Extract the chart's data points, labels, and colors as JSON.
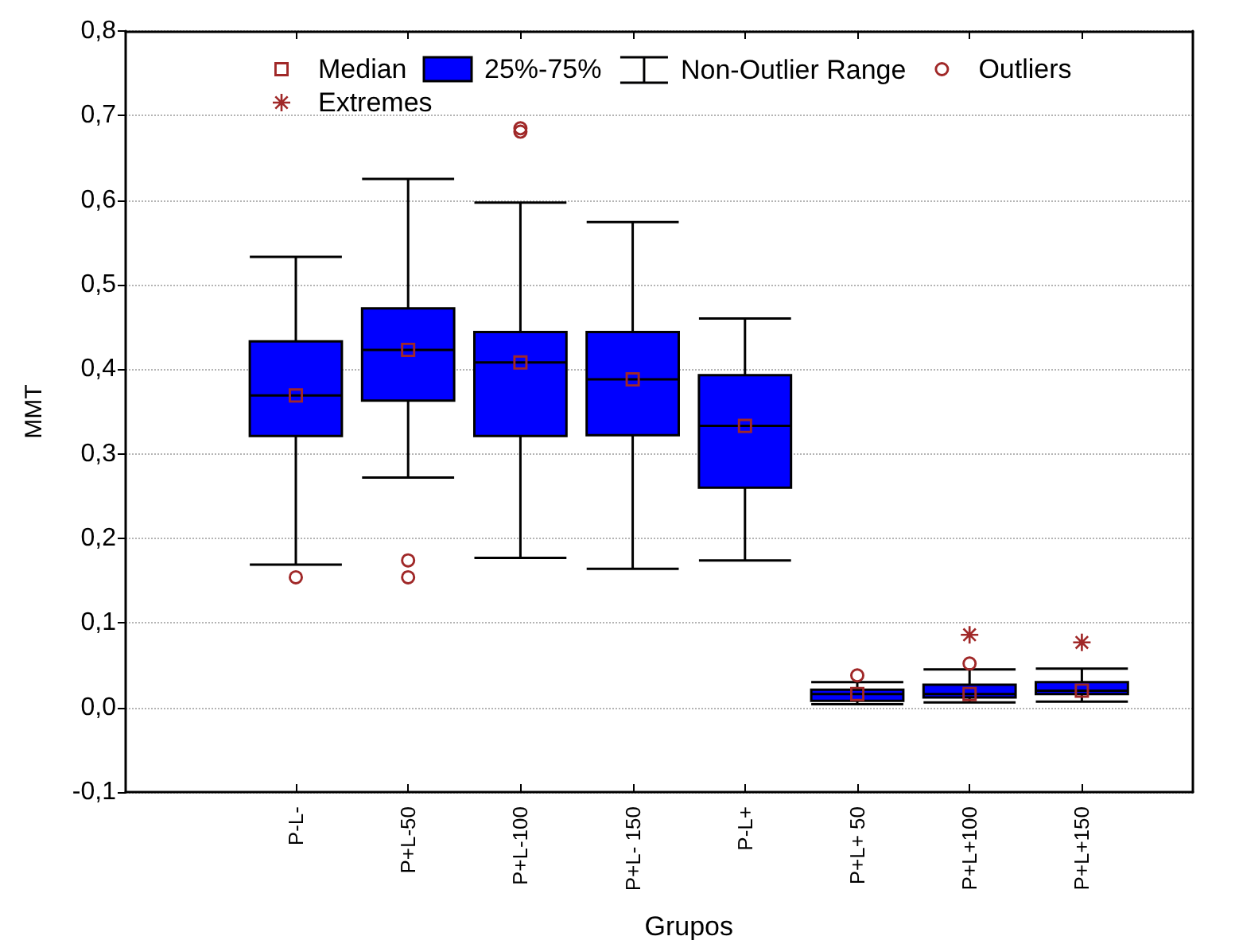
{
  "chart_data": {
    "type": "box",
    "xlabel": "Grupos",
    "ylabel": "MMT",
    "categories": [
      "P-L-",
      "P+L-50",
      "P+L-100",
      "P+L- 150",
      "P-L+",
      "P+L+ 50",
      "P+L+100",
      "P+L+150"
    ],
    "series": [
      {
        "name": "Median",
        "type": "scatter",
        "marker": "square",
        "color": "#a02828",
        "values": [
          0.369,
          0.423,
          0.408,
          0.388,
          0.333,
          0.016,
          0.016,
          0.02
        ]
      },
      {
        "name": "25%-75%",
        "color": "#0000ff",
        "boxes": [
          {
            "low": 0.169,
            "q1": 0.321,
            "median": 0.369,
            "q3": 0.433,
            "high": 0.533
          },
          {
            "low": 0.272,
            "q1": 0.363,
            "median": 0.423,
            "q3": 0.472,
            "high": 0.625
          },
          {
            "low": 0.177,
            "q1": 0.321,
            "median": 0.408,
            "q3": 0.444,
            "high": 0.597
          },
          {
            "low": 0.164,
            "q1": 0.322,
            "median": 0.388,
            "q3": 0.444,
            "high": 0.574
          },
          {
            "low": 0.174,
            "q1": 0.26,
            "median": 0.333,
            "q3": 0.393,
            "high": 0.46
          },
          {
            "low": 0.004,
            "q1": 0.008,
            "median": 0.016,
            "q3": 0.021,
            "high": 0.03
          },
          {
            "low": 0.006,
            "q1": 0.012,
            "median": 0.016,
            "q3": 0.027,
            "high": 0.045
          },
          {
            "low": 0.007,
            "q1": 0.016,
            "median": 0.02,
            "q3": 0.03,
            "high": 0.046
          }
        ]
      },
      {
        "name": "Outliers",
        "type": "scatter",
        "marker": "circle",
        "color": "#a02828",
        "x": [
          "P-L-",
          "P+L-50",
          "P+L-50",
          "P+L-100",
          "P+L-100",
          "P+L+ 50",
          "P+L+100"
        ],
        "values": [
          0.154,
          0.174,
          0.154,
          0.681,
          0.685,
          0.038,
          0.052
        ]
      },
      {
        "name": "Extremes",
        "type": "scatter",
        "marker": "star",
        "color": "#a02828",
        "x": [
          "P+L+100",
          "P+L+150"
        ],
        "values": [
          0.086,
          0.077
        ]
      }
    ],
    "annotations": [
      "Non-Outlier Range"
    ],
    "ylim": [
      -0.1,
      0.8
    ],
    "yticks": [
      {
        "value": -0.1,
        "label": "-0,1"
      },
      {
        "value": 0,
        "label": "0,0"
      },
      {
        "value": 0.1,
        "label": "0,1"
      },
      {
        "value": 0.2,
        "label": "0,2"
      },
      {
        "value": 0.3,
        "label": "0,3"
      },
      {
        "value": 0.4,
        "label": "0,4"
      },
      {
        "value": 0.5,
        "label": "0,5"
      },
      {
        "value": 0.6,
        "label": "0,6"
      },
      {
        "value": 0.7,
        "label": "0,7"
      },
      {
        "value": 0.8,
        "label": "0,8"
      }
    ],
    "grid": "y",
    "legend": "top"
  }
}
